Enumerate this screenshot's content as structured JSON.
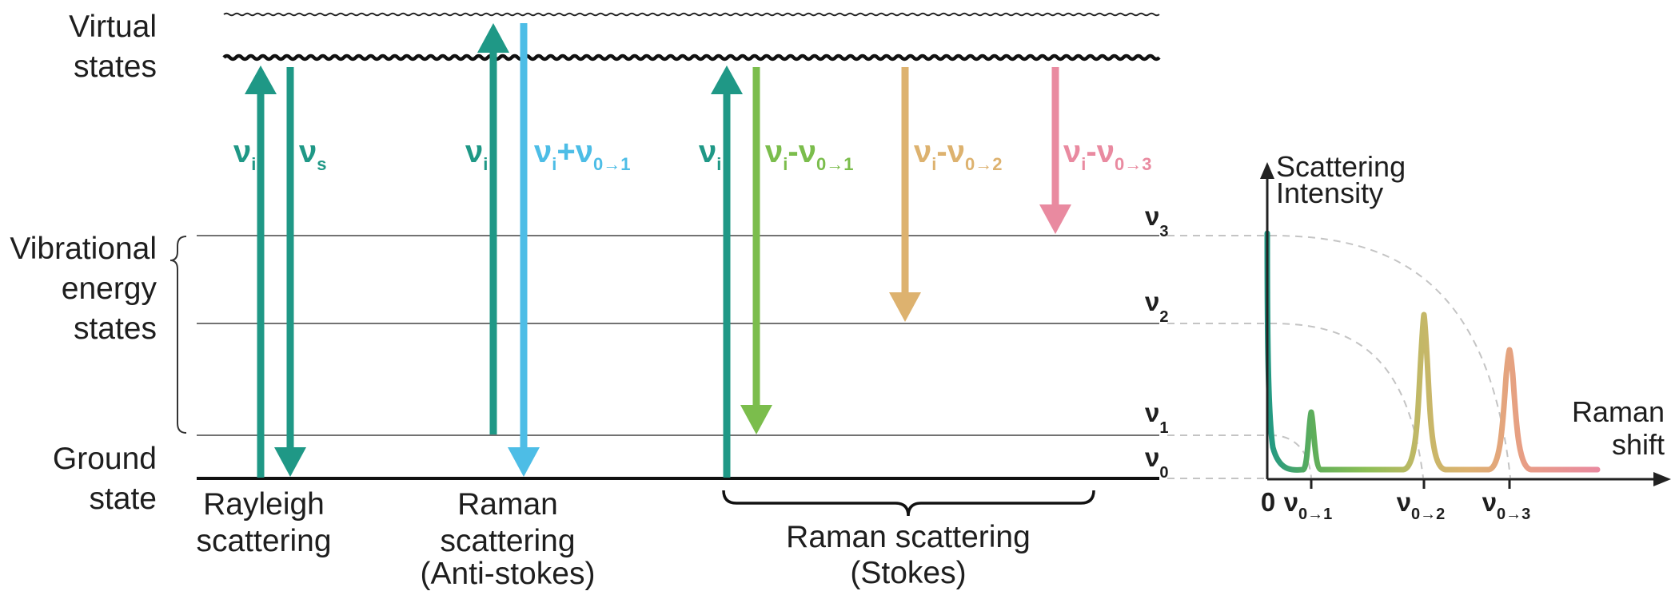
{
  "labels": {
    "virtual_states": [
      "Virtual",
      "states"
    ],
    "vibrational_states": [
      "Vibrational",
      "energy",
      "states"
    ],
    "ground_state": [
      "Ground",
      "state"
    ]
  },
  "levels": [
    {
      "id": "v3",
      "base": "ν",
      "sub": "3"
    },
    {
      "id": "v2",
      "base": "ν",
      "sub": "2"
    },
    {
      "id": "v1",
      "base": "ν",
      "sub": "1"
    },
    {
      "id": "v0",
      "base": "ν",
      "sub": "0"
    }
  ],
  "arrows": [
    {
      "id": "rayleigh-incident",
      "parts": [
        {
          "t": "ν",
          "s": false
        },
        {
          "t": "i",
          "s": true
        }
      ],
      "color": "#1f9886"
    },
    {
      "id": "rayleigh-scattered",
      "parts": [
        {
          "t": "ν",
          "s": false
        },
        {
          "t": "s",
          "s": true
        }
      ],
      "color": "#1f9886"
    },
    {
      "id": "antistokes-incident",
      "parts": [
        {
          "t": "ν",
          "s": false
        },
        {
          "t": "i",
          "s": true
        }
      ],
      "color": "#1f9886"
    },
    {
      "id": "antistokes-scattered",
      "parts": [
        {
          "t": "ν",
          "s": false
        },
        {
          "t": "i",
          "s": true
        },
        {
          "t": "+ν",
          "s": false
        },
        {
          "t": "0→1",
          "s": true
        }
      ],
      "color": "#4dbde6"
    },
    {
      "id": "stokes-incident",
      "parts": [
        {
          "t": "ν",
          "s": false
        },
        {
          "t": "i",
          "s": true
        }
      ],
      "color": "#1f9886"
    },
    {
      "id": "stokes-01",
      "parts": [
        {
          "t": "ν",
          "s": false
        },
        {
          "t": "i",
          "s": true
        },
        {
          "t": "-ν",
          "s": false
        },
        {
          "t": "0→1",
          "s": true
        }
      ],
      "color": "#7bbd4c"
    },
    {
      "id": "stokes-02",
      "parts": [
        {
          "t": "ν",
          "s": false
        },
        {
          "t": "i",
          "s": true
        },
        {
          "t": "-ν",
          "s": false
        },
        {
          "t": "0→2",
          "s": true
        }
      ],
      "color": "#ddb26f"
    },
    {
      "id": "stokes-03",
      "parts": [
        {
          "t": "ν",
          "s": false
        },
        {
          "t": "i",
          "s": true
        },
        {
          "t": "-ν",
          "s": false
        },
        {
          "t": "0→3",
          "s": true
        }
      ],
      "color": "#e98aa0"
    }
  ],
  "captions": {
    "rayleigh": [
      "Rayleigh",
      "scattering"
    ],
    "antistokes": [
      "Raman",
      "scattering",
      "(Anti-stokes)"
    ],
    "stokes": [
      "Raman scattering",
      "(Stokes)"
    ]
  },
  "spectrum": {
    "y_axis_title": [
      "Scattering",
      "Intensity"
    ],
    "x_axis_title": [
      "Raman",
      "shift"
    ],
    "ticks": [
      {
        "id": "zero",
        "base": "0",
        "sub": ""
      },
      {
        "id": "01",
        "base": "ν",
        "sub": "0→1"
      },
      {
        "id": "02",
        "base": "ν",
        "sub": "0→2"
      },
      {
        "id": "03",
        "base": "ν",
        "sub": "0→3"
      }
    ],
    "peak_colors": {
      "rayleigh": "#1f9886",
      "p01": "#7bbd4c",
      "p02": "#ddb26f",
      "p03": "#e98aa0"
    }
  }
}
